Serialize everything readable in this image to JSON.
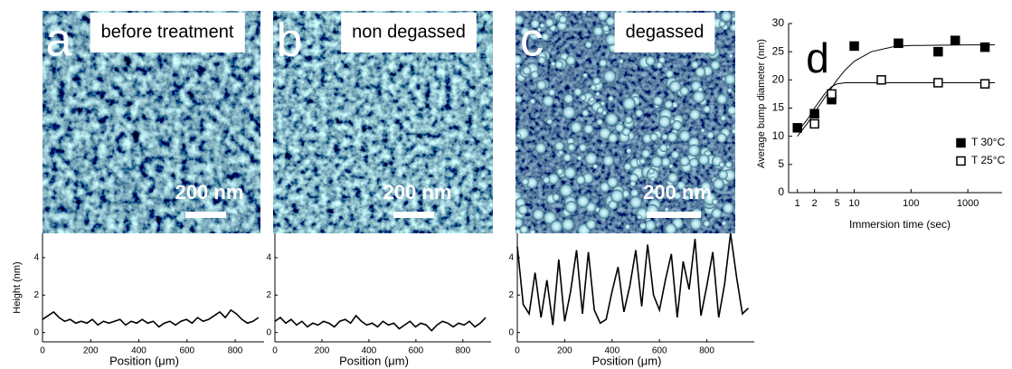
{
  "images": [
    {
      "letter": "a",
      "label": "before treatment",
      "scale_bar": "200 nm"
    },
    {
      "letter": "b",
      "label": "non degassed",
      "scale_bar": "200 nm"
    },
    {
      "letter": "c",
      "label": "degassed",
      "scale_bar": "200 nm"
    }
  ],
  "chart_data": [
    {
      "type": "line",
      "ylabel": "Height (nm)",
      "xlabel": "Position (μm)",
      "color": "#000000",
      "xlim": [
        0,
        920
      ],
      "ylim": [
        -0.5,
        5.3
      ],
      "xticks": [
        0,
        200,
        400,
        600,
        800
      ],
      "yticks": [
        0,
        2,
        4
      ],
      "x": [
        0,
        23,
        46,
        69,
        92,
        115,
        138,
        161,
        184,
        207,
        230,
        253,
        276,
        299,
        322,
        345,
        368,
        391,
        414,
        437,
        460,
        483,
        506,
        529,
        552,
        575,
        598,
        621,
        644,
        667,
        690,
        713,
        736,
        759,
        782,
        805,
        828,
        851,
        874,
        897
      ],
      "values": [
        0.7,
        0.9,
        1.1,
        0.8,
        0.6,
        0.7,
        0.5,
        0.6,
        0.5,
        0.7,
        0.4,
        0.6,
        0.5,
        0.6,
        0.7,
        0.4,
        0.6,
        0.5,
        0.7,
        0.5,
        0.6,
        0.3,
        0.5,
        0.6,
        0.4,
        0.6,
        0.7,
        0.5,
        0.8,
        0.6,
        0.7,
        0.9,
        1.1,
        0.8,
        1.2,
        1.0,
        0.7,
        0.5,
        0.6,
        0.8
      ]
    },
    {
      "type": "line",
      "xlabel": "Position (μm)",
      "color": "#000000",
      "xlim": [
        0,
        920
      ],
      "ylim": [
        -0.5,
        5.3
      ],
      "xticks": [
        0,
        200,
        400,
        600,
        800
      ],
      "yticks": [
        0,
        2,
        4
      ],
      "x": [
        0,
        23,
        46,
        69,
        92,
        115,
        138,
        161,
        184,
        207,
        230,
        253,
        276,
        299,
        322,
        345,
        368,
        391,
        414,
        437,
        460,
        483,
        506,
        529,
        552,
        575,
        598,
        621,
        644,
        667,
        690,
        713,
        736,
        759,
        782,
        805,
        828,
        851,
        874,
        897
      ],
      "values": [
        0.6,
        0.8,
        0.5,
        0.7,
        0.4,
        0.6,
        0.3,
        0.5,
        0.4,
        0.6,
        0.5,
        0.3,
        0.6,
        0.7,
        0.5,
        0.9,
        0.6,
        0.4,
        0.5,
        0.3,
        0.6,
        0.4,
        0.5,
        0.2,
        0.4,
        0.6,
        0.3,
        0.5,
        0.4,
        0.1,
        0.4,
        0.6,
        0.5,
        0.3,
        0.5,
        0.4,
        0.6,
        0.3,
        0.5,
        0.8
      ]
    },
    {
      "type": "line",
      "xlabel": "Position (μm)",
      "color": "#000000",
      "xlim": [
        0,
        1000
      ],
      "ylim": [
        -0.5,
        5.3
      ],
      "xticks": [
        0,
        200,
        400,
        600,
        800
      ],
      "yticks": [
        0,
        2,
        4
      ],
      "x": [
        0,
        25,
        50,
        75,
        100,
        125,
        150,
        175,
        200,
        225,
        250,
        275,
        300,
        325,
        350,
        375,
        400,
        425,
        450,
        475,
        500,
        525,
        550,
        575,
        600,
        625,
        650,
        675,
        700,
        725,
        750,
        775,
        800,
        825,
        850,
        875,
        900,
        925,
        950,
        975
      ],
      "values": [
        4.6,
        1.5,
        1.0,
        3.2,
        0.8,
        2.8,
        0.4,
        3.9,
        0.6,
        2.2,
        4.4,
        1.0,
        4.3,
        1.2,
        0.5,
        0.7,
        2.2,
        3.5,
        1.1,
        2.5,
        4.4,
        1.4,
        4.7,
        2.0,
        1.2,
        2.8,
        4.2,
        0.8,
        3.8,
        2.3,
        5.0,
        0.9,
        2.5,
        4.3,
        0.8,
        2.6,
        5.3,
        3.0,
        1.0,
        1.3
      ]
    },
    {
      "type": "scatter",
      "panel_label": "d",
      "xlabel": "Immersion time (sec)",
      "ylabel": "Average bump diameter (nm)",
      "xscale": "log",
      "xlim": [
        0.7,
        4000
      ],
      "ylim": [
        0,
        30
      ],
      "xticks": [
        1,
        2,
        5,
        10,
        100,
        1000
      ],
      "yticks": [
        0,
        5,
        10,
        15,
        20,
        25,
        30
      ],
      "legend": "right",
      "series": [
        {
          "name": "T 30°C",
          "color": "#000000",
          "marker": "filled",
          "x": [
            1,
            2,
            4,
            10,
            60,
            300,
            600,
            2000
          ],
          "values": [
            11.5,
            14,
            16.5,
            26,
            26.5,
            25,
            27,
            25.8
          ]
        },
        {
          "name": "T 25°C",
          "color": "#000000",
          "marker": "open",
          "x": [
            2,
            4,
            30,
            300,
            2000
          ],
          "values": [
            12.2,
            17.5,
            20,
            19.5,
            19.3
          ]
        }
      ],
      "curves": [
        {
          "color": "#000000",
          "x": [
            1,
            1.5,
            2,
            3,
            4,
            5,
            7,
            10,
            20,
            50,
            100,
            1000,
            3000
          ],
          "values": [
            10,
            12.3,
            14.2,
            16.8,
            18.6,
            20,
            21.8,
            23.3,
            25,
            25.9,
            26.1,
            26.2,
            26.2
          ]
        },
        {
          "color": "#000000",
          "x": [
            1,
            1.5,
            2,
            3,
            4,
            5,
            7,
            10,
            100,
            3000
          ],
          "values": [
            10.8,
            13,
            15,
            17.5,
            18.8,
            19.3,
            19.5,
            19.5,
            19.5,
            19.5
          ]
        }
      ]
    }
  ]
}
